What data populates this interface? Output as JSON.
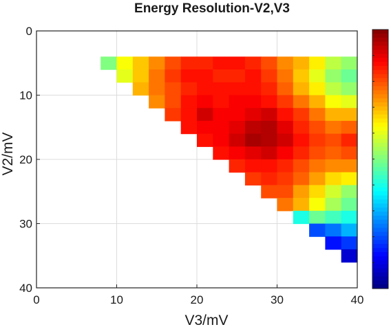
{
  "chart_data": {
    "type": "heatmap",
    "title": "Energy Resolution-V2,V3",
    "xlabel": "V3/mV",
    "ylabel": "V2/mV",
    "xlim": [
      0,
      40
    ],
    "ylim": [
      40,
      0
    ],
    "x_ticks": [
      "0",
      "10",
      "20",
      "30",
      "40"
    ],
    "y_ticks": [
      "0",
      "10",
      "20",
      "30",
      "40"
    ],
    "y_axis_reversed": true,
    "grid": true,
    "colormap": "jet",
    "colorbar": true,
    "colorbar_tick_labels": false,
    "x": [
      8,
      10,
      12,
      14,
      16,
      18,
      20,
      22,
      24,
      26,
      28,
      30,
      32,
      34,
      36,
      38
    ],
    "y": [
      4,
      6,
      8,
      10,
      12,
      14,
      16,
      18,
      20,
      22,
      24,
      26,
      28,
      30,
      32,
      34
    ],
    "z_note": "relative colour level 0 (blue) to 1 (dark red); null = no data",
    "z": [
      [
        0.5,
        0.62,
        0.68,
        0.74,
        0.8,
        0.84,
        0.84,
        0.86,
        0.86,
        0.84,
        0.8,
        0.74,
        0.7,
        0.64,
        0.56,
        0.52
      ],
      [
        null,
        0.6,
        0.68,
        0.76,
        0.82,
        0.86,
        0.86,
        0.84,
        0.84,
        0.86,
        0.82,
        0.76,
        0.68,
        0.6,
        0.52,
        0.48
      ],
      [
        null,
        null,
        0.7,
        0.76,
        0.8,
        0.84,
        0.86,
        0.86,
        0.86,
        0.86,
        0.84,
        0.78,
        0.7,
        0.64,
        0.56,
        0.52
      ],
      [
        null,
        null,
        null,
        0.74,
        0.8,
        0.86,
        0.88,
        0.86,
        0.88,
        0.88,
        0.86,
        0.82,
        0.76,
        0.7,
        0.62,
        0.6
      ],
      [
        null,
        null,
        null,
        null,
        0.82,
        0.86,
        0.92,
        0.88,
        0.88,
        0.9,
        0.92,
        0.86,
        0.82,
        0.76,
        0.7,
        0.7
      ],
      [
        null,
        null,
        null,
        null,
        null,
        0.86,
        0.88,
        0.88,
        0.9,
        0.94,
        0.95,
        0.9,
        0.84,
        0.8,
        0.76,
        0.78
      ],
      [
        null,
        null,
        null,
        null,
        null,
        null,
        0.86,
        0.88,
        0.92,
        0.96,
        0.95,
        0.92,
        0.86,
        0.82,
        0.8,
        0.84
      ],
      [
        null,
        null,
        null,
        null,
        null,
        null,
        null,
        0.86,
        0.88,
        0.9,
        0.92,
        0.88,
        0.84,
        0.8,
        0.78,
        0.8
      ],
      [
        null,
        null,
        null,
        null,
        null,
        null,
        null,
        null,
        0.84,
        0.86,
        0.86,
        0.84,
        0.8,
        0.76,
        0.74,
        0.74
      ],
      [
        null,
        null,
        null,
        null,
        null,
        null,
        null,
        null,
        null,
        0.82,
        0.84,
        0.82,
        0.78,
        0.72,
        0.66,
        0.64
      ],
      [
        null,
        null,
        null,
        null,
        null,
        null,
        null,
        null,
        null,
        null,
        0.8,
        0.8,
        0.72,
        0.66,
        0.58,
        0.52
      ],
      [
        null,
        null,
        null,
        null,
        null,
        null,
        null,
        null,
        null,
        null,
        null,
        0.76,
        0.7,
        0.62,
        0.54,
        0.48
      ],
      [
        null,
        null,
        null,
        null,
        null,
        null,
        null,
        null,
        null,
        null,
        null,
        null,
        0.4,
        0.48,
        0.44,
        0.4
      ],
      [
        null,
        null,
        null,
        null,
        null,
        null,
        null,
        null,
        null,
        null,
        null,
        null,
        null,
        0.2,
        0.24,
        0.3
      ],
      [
        null,
        null,
        null,
        null,
        null,
        null,
        null,
        null,
        null,
        null,
        null,
        null,
        null,
        null,
        0.14,
        0.18
      ],
      [
        null,
        null,
        null,
        null,
        null,
        null,
        null,
        null,
        null,
        null,
        null,
        null,
        null,
        null,
        null,
        0.08
      ]
    ]
  }
}
